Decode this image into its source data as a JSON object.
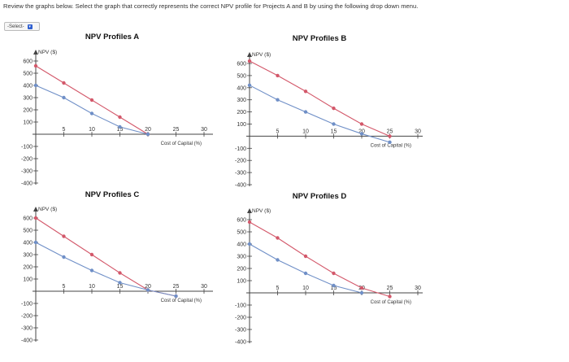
{
  "instruction": "Review the graphs below. Select the graph that correctly represents the correct NPV profile for Projects A and B by using the following drop down menu.",
  "dropdown": {
    "selected": "-Select-"
  },
  "colors": {
    "project_red": "#d3586a",
    "project_blue": "#6f8fc7",
    "axis": "#444444",
    "title": "#111111"
  },
  "chart_data": [
    {
      "type": "line",
      "title": "NPV Profiles A",
      "ylabel": "NPV ($)",
      "xlabel": "Cost of Capital (%)",
      "xlim": [
        0,
        30
      ],
      "ylim": [
        -400,
        600
      ],
      "xticks": [
        "5",
        "10",
        "15",
        "20",
        "25",
        "30"
      ],
      "yticks": [
        "600",
        "500",
        "400",
        "300",
        "200",
        "100",
        "-100",
        "-200",
        "-300",
        "-400"
      ],
      "series": [
        {
          "color": "red",
          "points": [
            [
              0,
              560
            ],
            [
              5,
              420
            ],
            [
              10,
              280
            ],
            [
              15,
              140
            ],
            [
              20,
              0
            ]
          ]
        },
        {
          "color": "blue",
          "points": [
            [
              0,
              400
            ],
            [
              5,
              300
            ],
            [
              10,
              170
            ],
            [
              15,
              60
            ],
            [
              20,
              0
            ]
          ]
        }
      ]
    },
    {
      "type": "line",
      "title": "NPV Profiles B",
      "ylabel": "NPV ($)",
      "xlabel": "Cost of Capital (%)",
      "xlim": [
        0,
        30
      ],
      "ylim": [
        -400,
        600
      ],
      "xticks": [
        "5",
        "10",
        "15",
        "20",
        "25",
        "30"
      ],
      "yticks": [
        "600",
        "500",
        "400",
        "300",
        "200",
        "100",
        "-100",
        "-200",
        "-300",
        "-400"
      ],
      "series": [
        {
          "color": "red",
          "points": [
            [
              0,
              620
            ],
            [
              5,
              500
            ],
            [
              10,
              370
            ],
            [
              15,
              230
            ],
            [
              20,
              100
            ],
            [
              25,
              0
            ]
          ]
        },
        {
          "color": "blue",
          "points": [
            [
              0,
              420
            ],
            [
              5,
              300
            ],
            [
              10,
              200
            ],
            [
              15,
              100
            ],
            [
              20,
              20
            ],
            [
              25,
              -50
            ]
          ]
        }
      ]
    },
    {
      "type": "line",
      "title": "NPV Profiles C",
      "ylabel": "NPV ($)",
      "xlabel": "Cost of Capital (%)",
      "xlim": [
        0,
        30
      ],
      "ylim": [
        -400,
        600
      ],
      "xticks": [
        "5",
        "10",
        "15",
        "20",
        "25",
        "30"
      ],
      "yticks": [
        "600",
        "500",
        "400",
        "300",
        "200",
        "100",
        "-100",
        "-200",
        "-300",
        "-400"
      ],
      "series": [
        {
          "color": "red",
          "points": [
            [
              0,
              600
            ],
            [
              5,
              450
            ],
            [
              10,
              300
            ],
            [
              15,
              150
            ],
            [
              20,
              10
            ],
            [
              25,
              -40
            ]
          ]
        },
        {
          "color": "blue",
          "points": [
            [
              0,
              400
            ],
            [
              5,
              280
            ],
            [
              10,
              170
            ],
            [
              15,
              70
            ],
            [
              20,
              10
            ],
            [
              25,
              -40
            ]
          ]
        }
      ]
    },
    {
      "type": "line",
      "title": "NPV Profiles D",
      "ylabel": "NPV ($)",
      "xlabel": "Cost of Capital (%)",
      "xlim": [
        0,
        30
      ],
      "ylim": [
        -400,
        600
      ],
      "xticks": [
        "5",
        "10",
        "15",
        "20",
        "25",
        "30"
      ],
      "yticks": [
        "600",
        "500",
        "400",
        "300",
        "200",
        "100",
        "-100",
        "-200",
        "-300",
        "-400"
      ],
      "series": [
        {
          "color": "red",
          "points": [
            [
              0,
              580
            ],
            [
              5,
              450
            ],
            [
              10,
              300
            ],
            [
              15,
              160
            ],
            [
              20,
              40
            ],
            [
              25,
              -30
            ]
          ]
        },
        {
          "color": "blue",
          "points": [
            [
              0,
              400
            ],
            [
              5,
              270
            ],
            [
              10,
              160
            ],
            [
              15,
              60
            ],
            [
              20,
              0
            ]
          ]
        }
      ]
    }
  ]
}
